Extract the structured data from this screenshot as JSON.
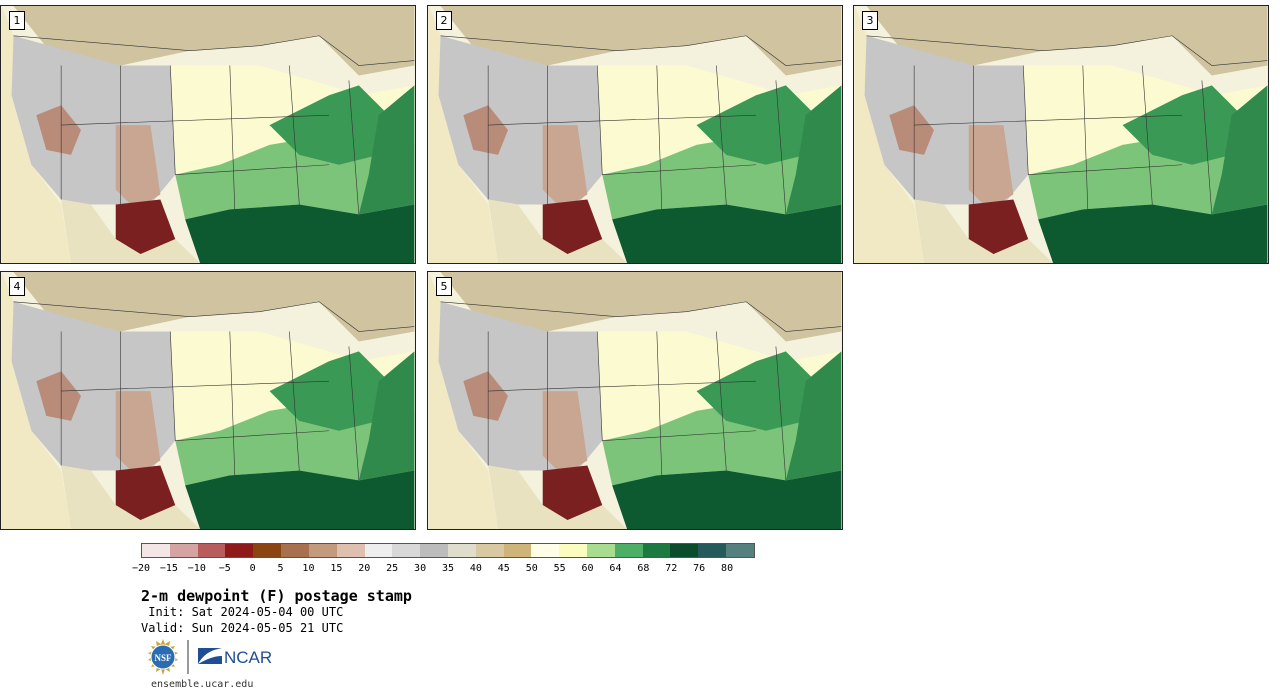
{
  "panels": [
    {
      "label": "1"
    },
    {
      "label": "2"
    },
    {
      "label": "3"
    },
    {
      "label": "4"
    },
    {
      "label": "5"
    }
  ],
  "colorbar": {
    "colors": [
      "#f5e6e6",
      "#d6a3a3",
      "#b85c5c",
      "#8f1a1a",
      "#8b4513",
      "#a9704f",
      "#c49a7e",
      "#ddc0ae",
      "#eeeeee",
      "#d8d8d8",
      "#bcbcbc",
      "#e0ddcc",
      "#d9c9a3",
      "#cfb47a",
      "#fffde6",
      "#fafcc0",
      "#a8dc90",
      "#4caf65",
      "#1b7a3f",
      "#0b4d2a",
      "#245a5c",
      "#55807e"
    ],
    "ticks": [
      "−20",
      "−15",
      "−10",
      "−5",
      "0",
      "5",
      "10",
      "15",
      "20",
      "25",
      "30",
      "35",
      "40",
      "45",
      "50",
      "55",
      "60",
      "64",
      "68",
      "72",
      "76",
      "80"
    ]
  },
  "title": "2-m dewpoint (F) postage stamp",
  "init": " Init: Sat 2024-05-04 00 UTC",
  "valid": "Valid: Sun 2024-05-05 21 UTC",
  "logos": {
    "nsf": "NSF",
    "ncar": "NCAR"
  },
  "url": "ensemble.ucar.edu"
}
